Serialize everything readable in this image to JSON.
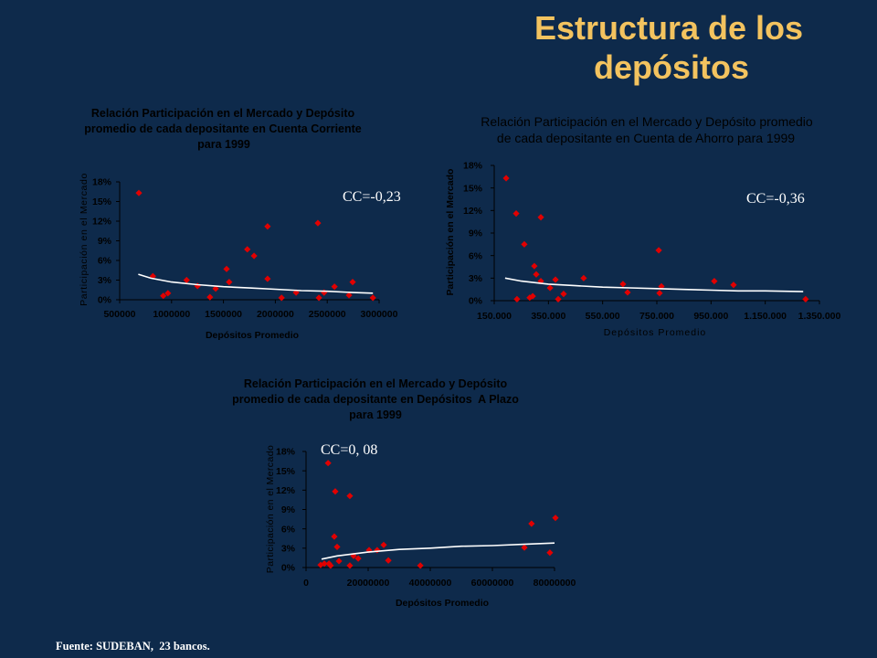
{
  "slide": {
    "title_line1": "Estructura de los",
    "title_line2": "depósitos",
    "source": "Fuente: SUDEBAN,  23 bancos."
  },
  "colors": {
    "background": "#0e2a4b",
    "title": "#f3c35f",
    "chart_text": "#000000",
    "annotation": "#ffffff",
    "marker": "#e10000",
    "trendline": "#ffffff"
  },
  "chart_data": [
    {
      "type": "scatter",
      "title_lines": [
        "Relación Participación en el Mercado y Depósito",
        "promedio de cada depositante en Cuenta Corriente",
        "para 1999"
      ],
      "xlabel": "Depósitos Promedio",
      "ylabel": "Participación en el Mercado",
      "annotation": "CC=-0,23",
      "xlim": [
        500000,
        3000000
      ],
      "ylim": [
        0,
        18
      ],
      "x_ticks": [
        500000,
        1000000,
        1500000,
        2000000,
        2500000,
        3000000
      ],
      "x_tick_labels": [
        "500000",
        "1000000",
        "1500000",
        "2000000",
        "2500000",
        "3000000"
      ],
      "y_ticks": [
        0,
        3,
        6,
        9,
        12,
        15,
        18
      ],
      "y_tick_labels": [
        "0%",
        "3%",
        "6%",
        "9%",
        "12%",
        "15%",
        "18%"
      ],
      "grid": false,
      "legend": "none",
      "points": [
        [
          685000,
          16.3
        ],
        [
          820000,
          3.6
        ],
        [
          920000,
          0.6
        ],
        [
          965000,
          1.0
        ],
        [
          1145000,
          3.0
        ],
        [
          1250000,
          2.1
        ],
        [
          1370000,
          0.4
        ],
        [
          1425000,
          1.7
        ],
        [
          1530000,
          4.7
        ],
        [
          1555000,
          2.7
        ],
        [
          1730000,
          7.7
        ],
        [
          1795000,
          6.7
        ],
        [
          1925000,
          11.2
        ],
        [
          1925000,
          3.2
        ],
        [
          2060000,
          0.3
        ],
        [
          2200000,
          1.1
        ],
        [
          2410000,
          11.7
        ],
        [
          2420000,
          0.3
        ],
        [
          2470000,
          1.1
        ],
        [
          2570000,
          2.0
        ],
        [
          2710000,
          0.7
        ],
        [
          2745000,
          2.7
        ],
        [
          2940000,
          0.3
        ]
      ],
      "trendline": [
        [
          680000,
          3.9
        ],
        [
          800000,
          3.3
        ],
        [
          1000000,
          2.7
        ],
        [
          1250000,
          2.3
        ],
        [
          1500000,
          2.0
        ],
        [
          1750000,
          1.8
        ],
        [
          2000000,
          1.6
        ],
        [
          2250000,
          1.4
        ],
        [
          2500000,
          1.3
        ],
        [
          2750000,
          1.1
        ],
        [
          2940000,
          1.0
        ]
      ]
    },
    {
      "type": "scatter",
      "title_lines": [
        "Relación Participación en el Mercado y Depósito promedio",
        "de cada depositante en Cuenta de Ahorro para 1999"
      ],
      "xlabel": "Depósitos Promedio",
      "ylabel": "Participación en el Mercado",
      "annotation": "CC=-0,36",
      "xlim": [
        150000,
        1350000
      ],
      "ylim": [
        0,
        18
      ],
      "x_ticks": [
        150000,
        350000,
        550000,
        750000,
        950000,
        1150000,
        1350000
      ],
      "x_tick_labels": [
        "150.000",
        "350.000",
        "550.000",
        "750.000",
        "950.000",
        "1.150.000",
        "1.350.000"
      ],
      "y_ticks": [
        0,
        3,
        6,
        9,
        12,
        15,
        18
      ],
      "y_tick_labels": [
        "0%",
        "3%",
        "6%",
        "9%",
        "12%",
        "15%",
        "18%"
      ],
      "grid": false,
      "legend": "none",
      "points": [
        [
          194000,
          16.3
        ],
        [
          231000,
          11.6
        ],
        [
          234000,
          0.2
        ],
        [
          261000,
          7.5
        ],
        [
          281000,
          0.4
        ],
        [
          292000,
          0.6
        ],
        [
          298000,
          4.6
        ],
        [
          305000,
          3.5
        ],
        [
          322000,
          11.1
        ],
        [
          322000,
          2.6
        ],
        [
          356000,
          1.7
        ],
        [
          376000,
          2.8
        ],
        [
          386000,
          0.2
        ],
        [
          406000,
          0.9
        ],
        [
          480000,
          3.0
        ],
        [
          625000,
          2.2
        ],
        [
          642000,
          1.1
        ],
        [
          757000,
          6.7
        ],
        [
          760000,
          1.0
        ],
        [
          767000,
          1.9
        ],
        [
          962000,
          2.6
        ],
        [
          1033000,
          2.1
        ],
        [
          1299000,
          0.2
        ]
      ],
      "trendline": [
        [
          190000,
          3.0
        ],
        [
          250000,
          2.6
        ],
        [
          350000,
          2.2
        ],
        [
          450000,
          2.0
        ],
        [
          550000,
          1.8
        ],
        [
          650000,
          1.7
        ],
        [
          750000,
          1.6
        ],
        [
          850000,
          1.5
        ],
        [
          950000,
          1.4
        ],
        [
          1050000,
          1.3
        ],
        [
          1150000,
          1.3
        ],
        [
          1290000,
          1.2
        ]
      ]
    },
    {
      "type": "scatter",
      "title_lines": [
        "Relación Participación en el Mercado y Depósito",
        "promedio de cada depositante en Depósitos  A Plazo",
        "para 1999"
      ],
      "xlabel": "Depósitos Promedio",
      "ylabel": "Participación en el Mercado",
      "annotation": "CC=0, 08",
      "xlim": [
        0,
        80000000
      ],
      "ylim": [
        0,
        18
      ],
      "x_ticks": [
        0,
        20000000,
        40000000,
        60000000,
        80000000
      ],
      "x_tick_labels": [
        "0",
        "20000000",
        "40000000",
        "60000000",
        "80000000"
      ],
      "y_ticks": [
        0,
        3,
        6,
        9,
        12,
        15,
        18
      ],
      "y_tick_labels": [
        "0%",
        "3%",
        "6%",
        "9%",
        "12%",
        "15%",
        "18%"
      ],
      "grid": false,
      "legend": "none",
      "points": [
        [
          7100000,
          16.2
        ],
        [
          9400000,
          11.8
        ],
        [
          14100000,
          11.1
        ],
        [
          9100000,
          4.8
        ],
        [
          10000000,
          3.2
        ],
        [
          4700000,
          0.4
        ],
        [
          5900000,
          0.6
        ],
        [
          7400000,
          0.6
        ],
        [
          7900000,
          0.3
        ],
        [
          10600000,
          1.0
        ],
        [
          14100000,
          0.3
        ],
        [
          15300000,
          1.8
        ],
        [
          16800000,
          1.4
        ],
        [
          20300000,
          2.7
        ],
        [
          22900000,
          2.7
        ],
        [
          25000000,
          3.5
        ],
        [
          26500000,
          1.1
        ],
        [
          36800000,
          0.3
        ],
        [
          70300000,
          3.1
        ],
        [
          72600000,
          6.8
        ],
        [
          78500000,
          2.3
        ],
        [
          80300000,
          7.7
        ]
      ],
      "trendline": [
        [
          5000000,
          1.3
        ],
        [
          10000000,
          1.8
        ],
        [
          15000000,
          2.1
        ],
        [
          20000000,
          2.4
        ],
        [
          30000000,
          2.8
        ],
        [
          40000000,
          3.0
        ],
        [
          50000000,
          3.3
        ],
        [
          60000000,
          3.4
        ],
        [
          70000000,
          3.6
        ],
        [
          80000000,
          3.8
        ]
      ]
    }
  ]
}
